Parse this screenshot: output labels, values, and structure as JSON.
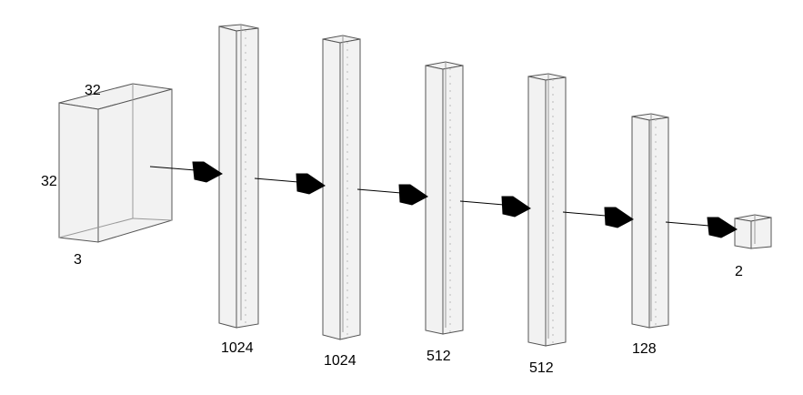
{
  "input": {
    "width_label": "32",
    "height_label": "32",
    "channels_label": "3"
  },
  "layers": [
    {
      "units_label": "1024"
    },
    {
      "units_label": "1024"
    },
    {
      "units_label": "512"
    },
    {
      "units_label": "512"
    },
    {
      "units_label": "128"
    }
  ],
  "output": {
    "units_label": "2"
  },
  "colors": {
    "face": "#f2f2f2",
    "edge": "#555555",
    "inner": "#888888",
    "arrow": "#000000"
  }
}
